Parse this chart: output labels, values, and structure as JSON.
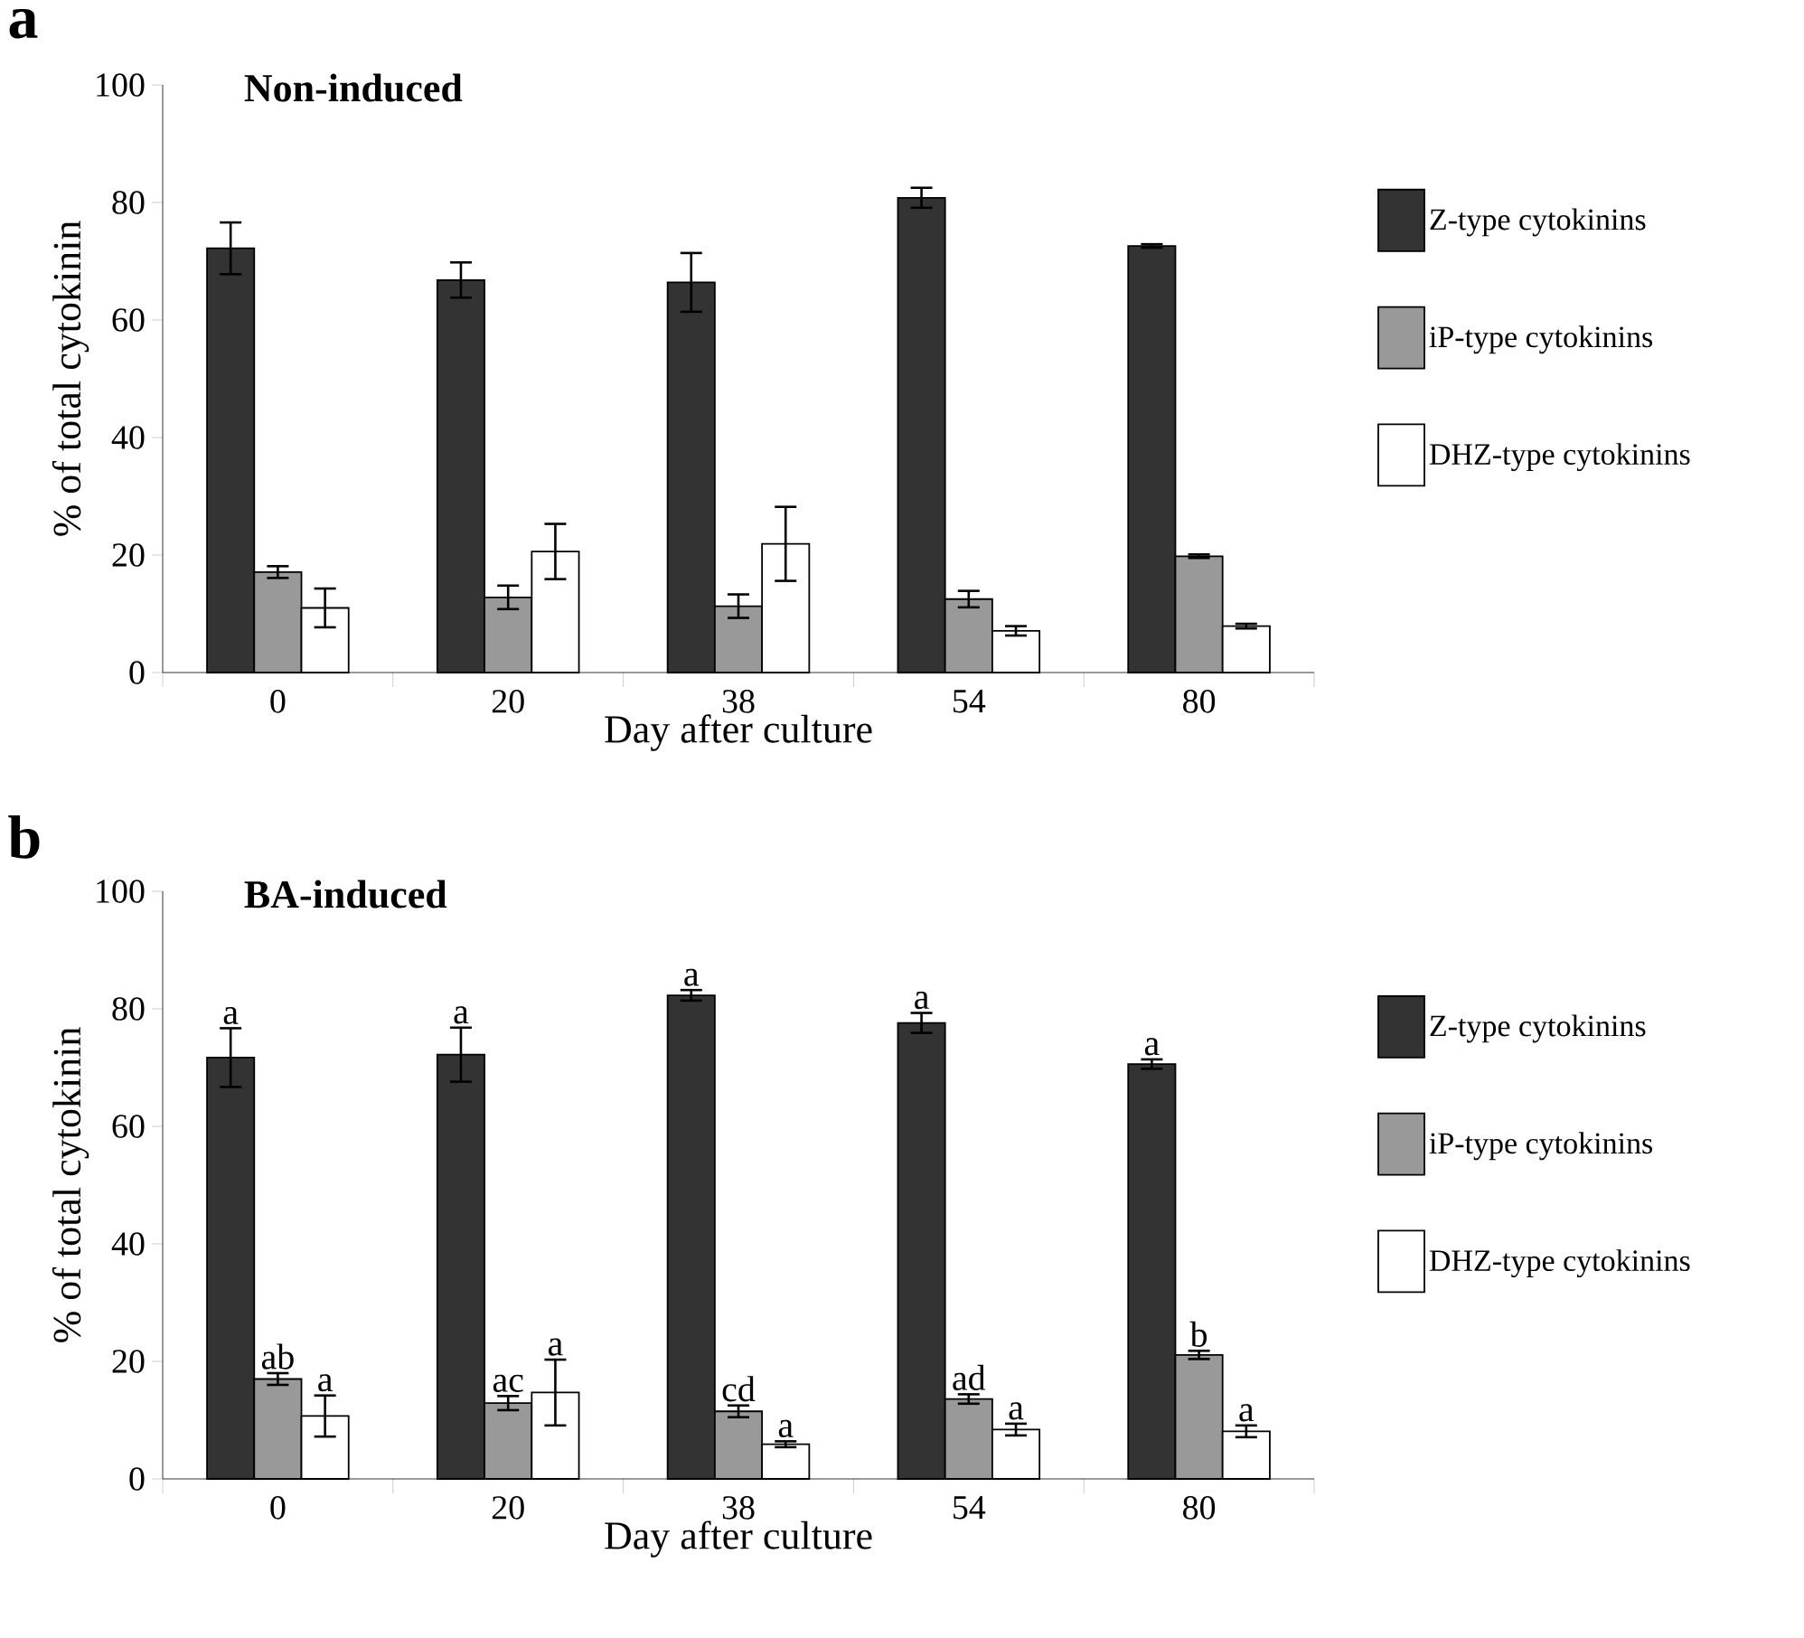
{
  "chart_data": [
    {
      "type": "bar",
      "title": "Non-induced",
      "xlabel": "Day after culture",
      "ylabel": "% of total cytokinin",
      "categories": [
        "0",
        "20",
        "38",
        "54",
        "80"
      ],
      "ylim": [
        0,
        100
      ],
      "yticks": [
        0,
        20,
        40,
        60,
        80,
        100
      ],
      "legend": "right",
      "series": [
        {
          "name": "Z-type cytokinins",
          "color": "#333333",
          "values": [
            72.2,
            66.8,
            66.4,
            80.8,
            72.6
          ],
          "errors": [
            4.4,
            3.0,
            5.0,
            1.7,
            0.3
          ]
        },
        {
          "name": "iP-type cytokinins",
          "color": "#999999",
          "values": [
            17.1,
            12.8,
            11.3,
            12.5,
            19.8
          ],
          "errors": [
            1.0,
            2.0,
            2.0,
            1.4,
            0.3
          ]
        },
        {
          "name": "DHZ-type cytokinins",
          "color": "#ffffff",
          "values": [
            11.0,
            20.6,
            21.9,
            7.1,
            7.9
          ],
          "errors": [
            3.3,
            4.7,
            6.3,
            0.8,
            0.4
          ]
        }
      ],
      "annotations": [
        "a"
      ]
    },
    {
      "type": "bar",
      "title": "BA-induced",
      "xlabel": "Day after culture",
      "ylabel": "% of total cytokinin",
      "categories": [
        "0",
        "20",
        "38",
        "54",
        "80"
      ],
      "ylim": [
        0,
        100
      ],
      "yticks": [
        0,
        20,
        40,
        60,
        80,
        100
      ],
      "legend": "right",
      "series": [
        {
          "name": "Z-type cytokinins",
          "color": "#333333",
          "values": [
            71.7,
            72.2,
            82.3,
            77.6,
            70.6
          ],
          "errors": [
            5.0,
            4.6,
            0.9,
            1.7,
            0.8
          ],
          "value_labels": [
            "a",
            "a",
            "a",
            "a",
            "a"
          ]
        },
        {
          "name": "iP-type cytokinins",
          "color": "#999999",
          "values": [
            17.0,
            12.9,
            11.5,
            13.6,
            21.1
          ],
          "errors": [
            1.0,
            1.2,
            1.0,
            0.8,
            0.7
          ],
          "value_labels": [
            "ab",
            "ac",
            "cd",
            "ad",
            "b"
          ]
        },
        {
          "name": "DHZ-type cytokinins",
          "color": "#ffffff",
          "values": [
            10.7,
            14.7,
            5.9,
            8.4,
            8.1
          ],
          "errors": [
            3.5,
            5.6,
            0.5,
            1.0,
            1.0
          ],
          "value_labels": [
            "a",
            "a",
            "a",
            "a",
            "a"
          ]
        }
      ],
      "annotations": [
        "b"
      ]
    }
  ]
}
